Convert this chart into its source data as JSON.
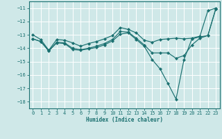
{
  "xlabel": "Humidex (Indice chaleur)",
  "xlim": [
    -0.5,
    23.5
  ],
  "ylim": [
    -18.5,
    -10.5
  ],
  "yticks": [
    -18,
    -17,
    -16,
    -15,
    -14,
    -13,
    -12,
    -11
  ],
  "xticks": [
    0,
    1,
    2,
    3,
    4,
    5,
    6,
    7,
    8,
    9,
    10,
    11,
    12,
    13,
    14,
    15,
    16,
    17,
    18,
    19,
    20,
    21,
    22,
    23
  ],
  "bg_color": "#cfe8e8",
  "line_color": "#1a7070",
  "grid_color": "#ffffff",
  "lines": [
    {
      "x": [
        0,
        1,
        2,
        3,
        4,
        5,
        6,
        7,
        8,
        9,
        10,
        11,
        12,
        13,
        14,
        15,
        16,
        17,
        18,
        19,
        20,
        21,
        22,
        23
      ],
      "y": [
        -13.0,
        -13.35,
        -14.15,
        -13.35,
        -13.4,
        -13.6,
        -13.85,
        -13.65,
        -13.5,
        -13.3,
        -13.05,
        -12.45,
        -12.6,
        -12.85,
        -13.4,
        -13.55,
        -13.35,
        -13.3,
        -13.25,
        -13.3,
        -13.25,
        -13.1,
        -11.2,
        -11.0
      ],
      "marker": "D",
      "markersize": 2.2
    },
    {
      "x": [
        0,
        1,
        2,
        3,
        4,
        5,
        6,
        7,
        8,
        9,
        10,
        11,
        12,
        13,
        14,
        15,
        16,
        17,
        18,
        19,
        20,
        21,
        22,
        23
      ],
      "y": [
        -13.3,
        -13.5,
        -14.2,
        -13.55,
        -13.6,
        -14.0,
        -14.1,
        -14.0,
        -13.85,
        -13.65,
        -13.35,
        -12.75,
        -12.8,
        -13.25,
        -13.75,
        -14.35,
        -14.35,
        -14.35,
        -14.75,
        -14.55,
        -13.75,
        -13.25,
        -13.05,
        -11.05
      ],
      "marker": "D",
      "markersize": 2.2
    },
    {
      "x": [
        0,
        1,
        2,
        3,
        4,
        5,
        6,
        7,
        8,
        9,
        10,
        11,
        12,
        13,
        14,
        15,
        16,
        17,
        18,
        19,
        20,
        21,
        22,
        23
      ],
      "y": [
        -13.3,
        -13.5,
        -14.2,
        -13.6,
        -13.65,
        -14.1,
        -14.15,
        -14.05,
        -13.95,
        -13.75,
        -13.45,
        -12.95,
        -12.85,
        -13.35,
        -13.85,
        -14.85,
        -15.55,
        -16.65,
        -17.8,
        -14.85,
        -13.3,
        -13.15,
        -13.05,
        -11.05
      ],
      "marker": "D",
      "markersize": 2.2
    }
  ]
}
